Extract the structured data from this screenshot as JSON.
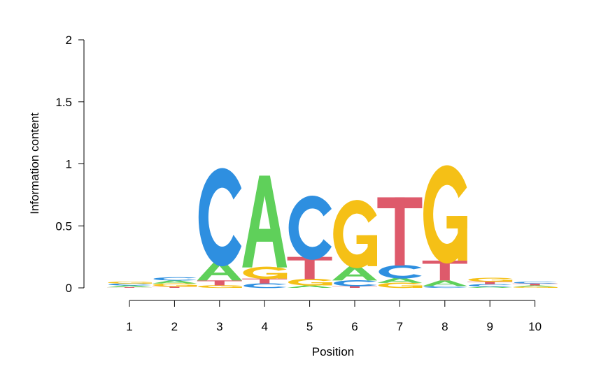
{
  "chart_data": {
    "type": "sequence-logo",
    "xlabel": "Position",
    "ylabel": "Information content",
    "ylim": [
      0,
      2
    ],
    "yticks": [
      {
        "value": 0,
        "label": "0"
      },
      {
        "value": 0.5,
        "label": "0.5"
      },
      {
        "value": 1,
        "label": "1"
      },
      {
        "value": 1.5,
        "label": "1.5"
      },
      {
        "value": 2,
        "label": "2"
      }
    ],
    "positions": [
      "1",
      "2",
      "3",
      "4",
      "5",
      "6",
      "7",
      "8",
      "9",
      "10"
    ],
    "colors": {
      "A": "#5fd05a",
      "C": "#2e8fe0",
      "G": "#f5c016",
      "T": "#de5a6b"
    },
    "columns": [
      {
        "position": 1,
        "letters": [
          {
            "base": "T",
            "height": 0.005
          },
          {
            "base": "A",
            "height": 0.015
          },
          {
            "base": "C",
            "height": 0.015
          },
          {
            "base": "G",
            "height": 0.015
          }
        ]
      },
      {
        "position": 2,
        "letters": [
          {
            "base": "T",
            "height": 0.01
          },
          {
            "base": "G",
            "height": 0.025
          },
          {
            "base": "A",
            "height": 0.025
          },
          {
            "base": "C",
            "height": 0.025
          }
        ]
      },
      {
        "position": 3,
        "letters": [
          {
            "base": "G",
            "height": 0.02
          },
          {
            "base": "T",
            "height": 0.04
          },
          {
            "base": "A",
            "height": 0.15
          },
          {
            "base": "C",
            "height": 0.72
          }
        ]
      },
      {
        "position": 4,
        "letters": [
          {
            "base": "C",
            "height": 0.035
          },
          {
            "base": "T",
            "height": 0.04
          },
          {
            "base": "G",
            "height": 0.09
          },
          {
            "base": "A",
            "height": 0.74
          }
        ]
      },
      {
        "position": 5,
        "letters": [
          {
            "base": "A",
            "height": 0.02
          },
          {
            "base": "G",
            "height": 0.05
          },
          {
            "base": "T",
            "height": 0.18
          },
          {
            "base": "C",
            "height": 0.47
          }
        ]
      },
      {
        "position": 6,
        "letters": [
          {
            "base": "T",
            "height": 0.015
          },
          {
            "base": "C",
            "height": 0.045
          },
          {
            "base": "A",
            "height": 0.115
          },
          {
            "base": "G",
            "height": 0.5
          }
        ]
      },
      {
        "position": 7,
        "letters": [
          {
            "base": "G",
            "height": 0.04
          },
          {
            "base": "A",
            "height": 0.04
          },
          {
            "base": "C",
            "height": 0.1
          },
          {
            "base": "T",
            "height": 0.55
          }
        ]
      },
      {
        "position": 8,
        "letters": [
          {
            "base": "C",
            "height": 0.015
          },
          {
            "base": "A",
            "height": 0.045
          },
          {
            "base": "T",
            "height": 0.16
          },
          {
            "base": "G",
            "height": 0.72
          }
        ]
      },
      {
        "position": 9,
        "letters": [
          {
            "base": "A",
            "height": 0.01
          },
          {
            "base": "C",
            "height": 0.02
          },
          {
            "base": "T",
            "height": 0.02
          },
          {
            "base": "G",
            "height": 0.03
          }
        ]
      },
      {
        "position": 10,
        "letters": [
          {
            "base": "G",
            "height": 0.01
          },
          {
            "base": "A",
            "height": 0.01
          },
          {
            "base": "T",
            "height": 0.015
          },
          {
            "base": "C",
            "height": 0.015
          }
        ]
      }
    ]
  }
}
